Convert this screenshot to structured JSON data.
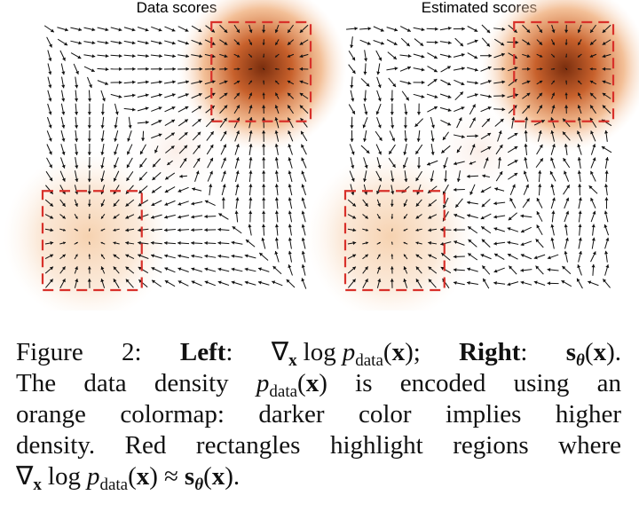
{
  "panels": [
    {
      "title": "Data scores"
    },
    {
      "title": "Estimated scores"
    }
  ],
  "caption": {
    "line1": [
      "Figure 2:",
      "Left",
      ":",
      "∇",
      "x",
      "log",
      "p",
      "data",
      "(",
      "x",
      ");",
      "Right",
      ":",
      "s",
      "θ",
      "(",
      "x",
      ")."
    ],
    "line2": [
      "The data density",
      "p",
      "data",
      "(",
      "x",
      ")",
      "is encoded using an"
    ],
    "line3": "orange colormap:  darker color implies higher",
    "line4": "density. Red rectangles highlight regions where",
    "line5": [
      "∇",
      "x",
      "log",
      "p",
      "data",
      "(",
      "x",
      ")",
      "≈",
      "s",
      "θ",
      "(",
      "x",
      ")."
    ]
  }
}
